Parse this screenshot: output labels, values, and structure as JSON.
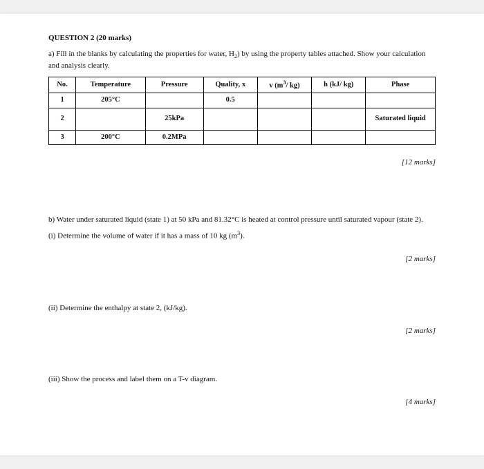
{
  "heading": "QUESTION 2 (20 marks)",
  "part_a_intro_1": "a) Fill in the blanks by calculating the properties for water, H",
  "part_a_intro_sub": "2",
  "part_a_intro_2": ") by using the property tables attached. Show your calculation and analysis clearly.",
  "table": {
    "headers": {
      "no": "No.",
      "temp": "Temperature",
      "press": "Pressure",
      "qual": "Quality, x",
      "v_pre": "v (m",
      "v_sup": "3",
      "v_post": "/ kg)",
      "h": "h (kJ/ kg)",
      "phase": "Phase"
    },
    "rows": [
      {
        "no": "1",
        "temp": "205°C",
        "press": "",
        "qual": "0.5",
        "v": "",
        "h": "",
        "phase": ""
      },
      {
        "no": "2",
        "temp": "",
        "press": "25kPa",
        "qual": "",
        "v": "",
        "h": "",
        "phase": "Saturated liquid"
      },
      {
        "no": "3",
        "temp": "200°C",
        "press": "0.2MPa",
        "qual": "",
        "v": "",
        "h": "",
        "phase": ""
      }
    ]
  },
  "marks_a": "[12 marks]",
  "part_b_intro": "b) Water under saturated liquid (state 1) at 50 kPa and 81.32°C is heated at control pressure until saturated vapour (state 2).",
  "b_i_pre": "(i) Determine the volume of water if it has a mass of 10 kg (m",
  "b_i_sup": "3",
  "b_i_post": ").",
  "marks_b_i": "[2 marks]",
  "b_ii": "(ii) Determine the enthalpy at state 2, (kJ/kg).",
  "marks_b_ii": "[2 marks]",
  "b_iii": "(iii) Show the process and label them on a T-v diagram.",
  "marks_b_iii": "[4 marks]"
}
